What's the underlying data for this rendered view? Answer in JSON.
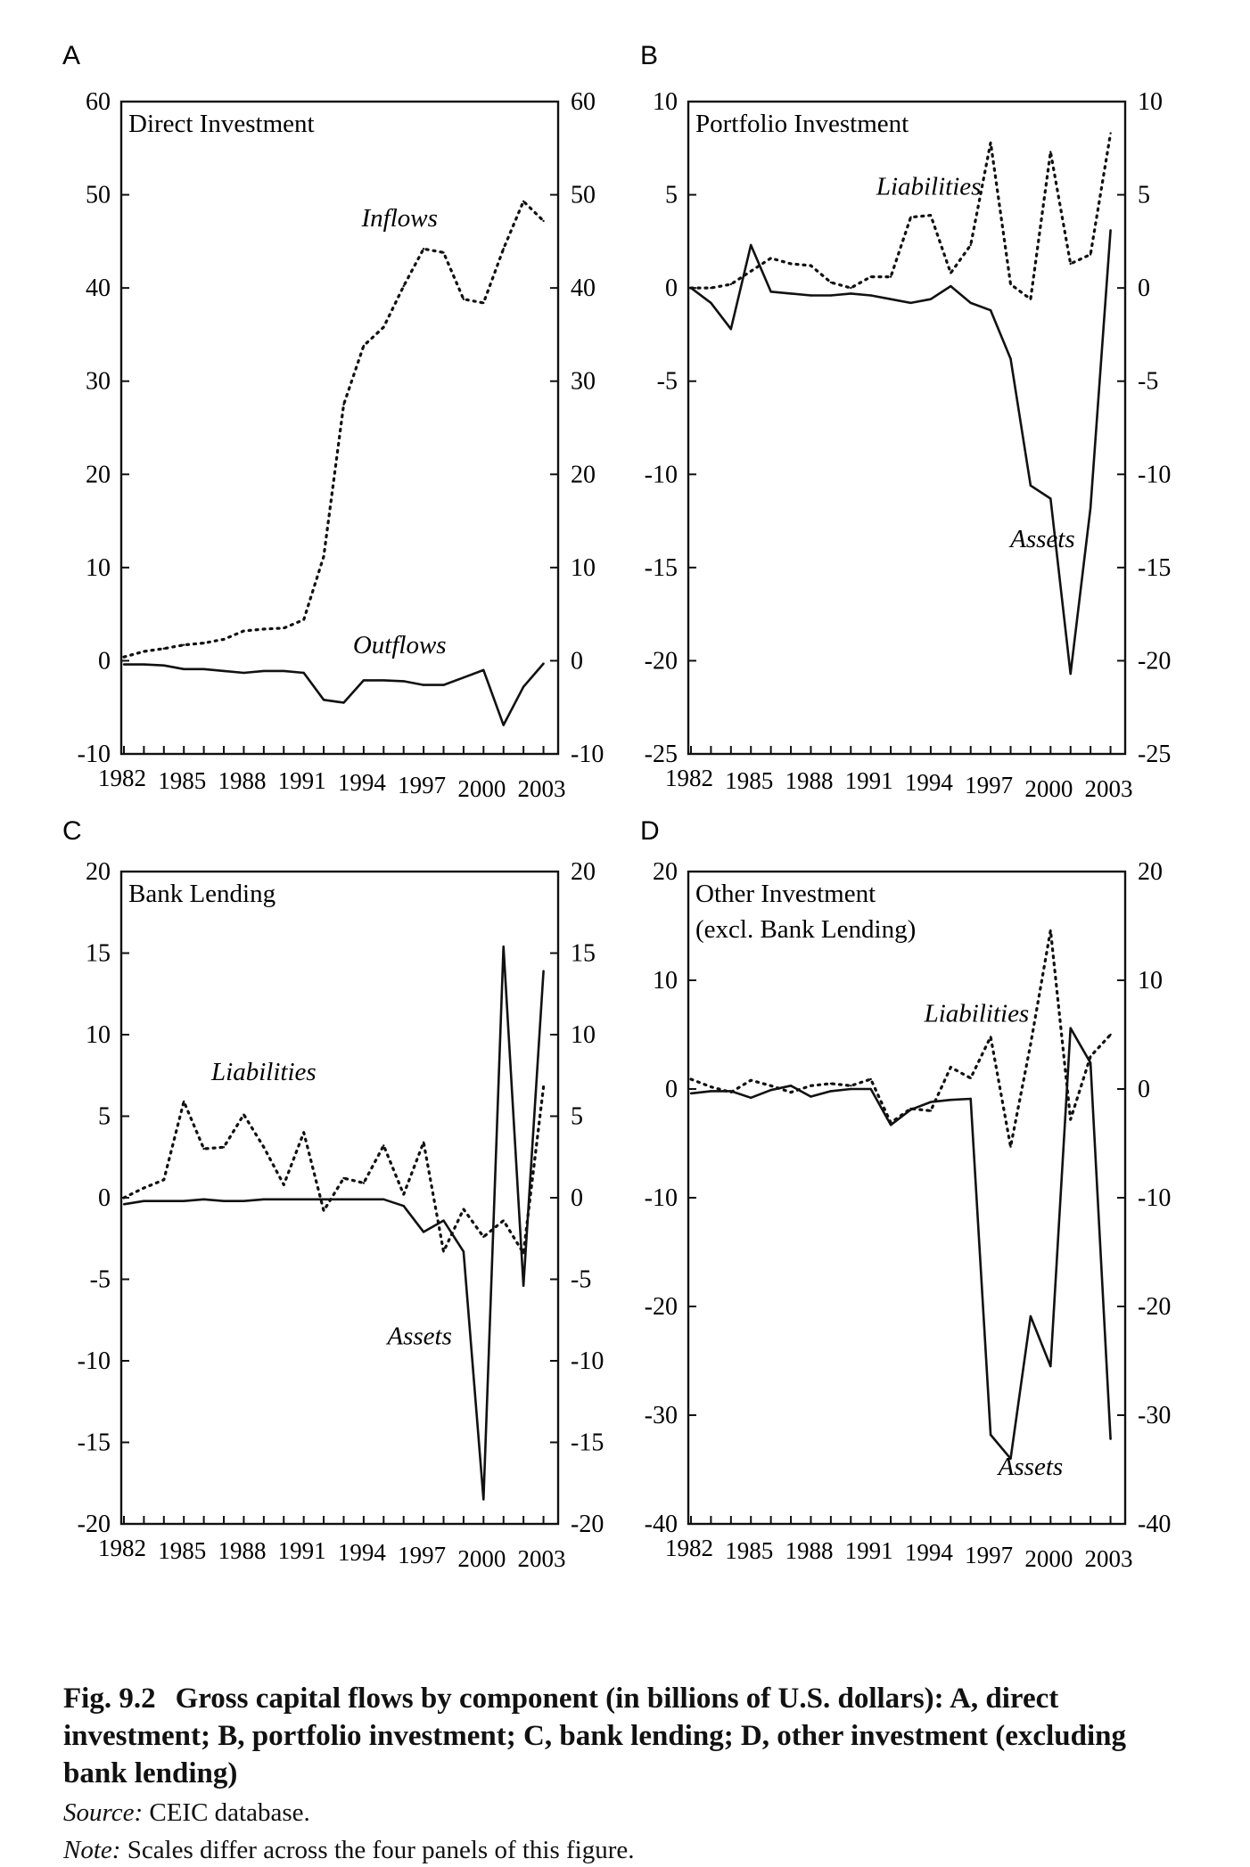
{
  "panels": [
    {
      "letter": "A",
      "title_lines": [
        "Direct Investment"
      ],
      "ylim": [
        -10,
        60
      ],
      "y_ticks": [
        -10,
        0,
        10,
        20,
        30,
        40,
        50,
        60
      ],
      "y_tick_labels": [
        "-10",
        "0",
        "10",
        "20",
        "30",
        "40",
        "50",
        "60"
      ],
      "series_labels": {
        "solid": {
          "text": "Outflows",
          "at": [
            1995.8,
            0.8
          ]
        },
        "dotted": {
          "text": "Inflows",
          "at": [
            1995.8,
            46.6
          ]
        }
      }
    },
    {
      "letter": "B",
      "title_lines": [
        "Portfolio Investment"
      ],
      "ylim": [
        -25,
        10
      ],
      "y_ticks": [
        -25,
        -20,
        -15,
        -10,
        -5,
        0,
        5,
        10
      ],
      "y_tick_labels": [
        "-25",
        "-20",
        "-15",
        "-10",
        "-5",
        "0",
        "5",
        "10"
      ],
      "series_labels": {
        "solid": {
          "text": "Assets",
          "at": [
            1999.6,
            -13.9
          ]
        },
        "dotted": {
          "text": "Liabilities",
          "at": [
            1993.9,
            5.0
          ]
        }
      }
    },
    {
      "letter": "C",
      "title_lines": [
        "Bank Lending"
      ],
      "ylim": [
        -20,
        20
      ],
      "y_ticks": [
        -20,
        -15,
        -10,
        -5,
        0,
        5,
        10,
        15,
        20
      ],
      "y_tick_labels": [
        "-20",
        "-15",
        "-10",
        "-5",
        "0",
        "5",
        "10",
        "15",
        "20"
      ],
      "series_labels": {
        "solid": {
          "text": "Assets",
          "at": [
            1996.8,
            -9.0
          ]
        },
        "dotted": {
          "text": "Liabilities",
          "at": [
            1989.0,
            7.2
          ]
        }
      }
    },
    {
      "letter": "D",
      "title_lines": [
        "Other Investment",
        "(excl. Bank Lending)"
      ],
      "ylim": [
        -40,
        20
      ],
      "y_ticks": [
        -40,
        -30,
        -20,
        -10,
        0,
        10,
        20
      ],
      "y_tick_labels": [
        "-40",
        "-30",
        "-20",
        "-10",
        "0",
        "10",
        "20"
      ],
      "series_labels": {
        "solid": {
          "text": "Assets",
          "at": [
            1999.0,
            -35.5
          ]
        },
        "dotted": {
          "text": "Liabilities",
          "at": [
            1996.3,
            6.2
          ]
        }
      }
    }
  ],
  "x_tick_labels": [
    "1982",
    "1985",
    "1988",
    "1991",
    "1994",
    "1997",
    "2000",
    "2003"
  ],
  "caption": {
    "number": "Fig. 9.2",
    "title": "Gross capital flows by component (in billions of U.S. dollars): A, direct investment; B, portfolio investment; C, bank lending; D, other investment (excluding bank lending)",
    "source_label": "Source:",
    "source_text": "CEIC database.",
    "note_label": "Note:",
    "note_text": "Scales differ across the four panels of this figure."
  },
  "chart_data": [
    {
      "type": "line",
      "title": "Direct Investment",
      "xlabel": "",
      "ylabel": "",
      "x": [
        1982,
        1983,
        1984,
        1985,
        1986,
        1987,
        1988,
        1989,
        1990,
        1991,
        1992,
        1993,
        1994,
        1995,
        1996,
        1997,
        1998,
        1999,
        2000,
        2001,
        2002,
        2003
      ],
      "ylim": [
        -10,
        60
      ],
      "grid": false,
      "series": [
        {
          "name": "Inflows",
          "style": "dotted",
          "values": [
            0.4,
            1.0,
            1.3,
            1.7,
            1.9,
            2.3,
            3.2,
            3.4,
            3.5,
            4.4,
            11.2,
            27.5,
            33.8,
            35.8,
            40.2,
            44.2,
            43.8,
            38.8,
            38.4,
            44.2,
            49.3,
            47.2
          ]
        },
        {
          "name": "Outflows",
          "style": "solid",
          "values": [
            -0.4,
            -0.4,
            -0.5,
            -0.9,
            -0.9,
            -1.1,
            -1.3,
            -1.1,
            -1.1,
            -1.3,
            -4.2,
            -4.5,
            -2.1,
            -2.1,
            -2.2,
            -2.6,
            -2.6,
            -1.8,
            -1.0,
            -6.9,
            -2.8,
            -0.3
          ]
        }
      ]
    },
    {
      "type": "line",
      "title": "Portfolio Investment",
      "xlabel": "",
      "ylabel": "",
      "x": [
        1982,
        1983,
        1984,
        1985,
        1986,
        1987,
        1988,
        1989,
        1990,
        1991,
        1992,
        1993,
        1994,
        1995,
        1996,
        1997,
        1998,
        1999,
        2000,
        2001,
        2002,
        2003
      ],
      "ylim": [
        -25,
        10
      ],
      "grid": false,
      "series": [
        {
          "name": "Liabilities",
          "style": "dotted",
          "values": [
            0.0,
            0.0,
            0.2,
            0.9,
            1.6,
            1.3,
            1.2,
            0.3,
            0.0,
            0.6,
            0.6,
            3.8,
            3.9,
            0.8,
            2.3,
            7.8,
            0.2,
            -0.6,
            7.3,
            1.3,
            1.8,
            8.3
          ]
        },
        {
          "name": "Assets",
          "style": "solid",
          "values": [
            0.0,
            -0.8,
            -2.2,
            2.3,
            -0.2,
            -0.3,
            -0.4,
            -0.4,
            -0.3,
            -0.4,
            -0.6,
            -0.8,
            -0.6,
            0.1,
            -0.8,
            -1.2,
            -3.8,
            -10.6,
            -11.3,
            -20.7,
            -11.8,
            3.1
          ]
        }
      ]
    },
    {
      "type": "line",
      "title": "Bank Lending",
      "xlabel": "",
      "ylabel": "",
      "x": [
        1982,
        1983,
        1984,
        1985,
        1986,
        1987,
        1988,
        1989,
        1990,
        1991,
        1992,
        1993,
        1994,
        1995,
        1996,
        1997,
        1998,
        1999,
        2000,
        2001,
        2002,
        2003
      ],
      "ylim": [
        -20,
        20
      ],
      "grid": false,
      "series": [
        {
          "name": "Liabilities",
          "style": "dotted",
          "values": [
            0.0,
            0.6,
            1.1,
            5.9,
            3.0,
            3.1,
            5.1,
            3.1,
            0.8,
            4.0,
            -0.8,
            1.2,
            0.9,
            3.2,
            0.2,
            3.4,
            -3.3,
            -0.7,
            -2.4,
            -1.4,
            -3.4,
            6.8
          ]
        },
        {
          "name": "Assets",
          "style": "solid",
          "values": [
            -0.4,
            -0.2,
            -0.2,
            -0.2,
            -0.1,
            -0.2,
            -0.2,
            -0.1,
            -0.1,
            -0.1,
            -0.1,
            -0.1,
            -0.1,
            -0.1,
            -0.5,
            -2.1,
            -1.4,
            -3.3,
            -18.5,
            15.4,
            -5.4,
            13.9
          ]
        }
      ]
    },
    {
      "type": "line",
      "title": "Other Investment (excl. Bank Lending)",
      "xlabel": "",
      "ylabel": "",
      "x": [
        1982,
        1983,
        1984,
        1985,
        1986,
        1987,
        1988,
        1989,
        1990,
        1991,
        1992,
        1993,
        1994,
        1995,
        1996,
        1997,
        1998,
        1999,
        2000,
        2001,
        2002,
        2003
      ],
      "ylim": [
        -40,
        20
      ],
      "grid": false,
      "series": [
        {
          "name": "Liabilities",
          "style": "dotted",
          "values": [
            0.9,
            0.2,
            -0.3,
            0.8,
            0.3,
            -0.3,
            0.3,
            0.5,
            0.3,
            0.9,
            -3.1,
            -1.8,
            -2.0,
            2.0,
            1.0,
            4.8,
            -5.3,
            4.1,
            14.6,
            -2.8,
            3.0,
            5.0
          ]
        },
        {
          "name": "Assets",
          "style": "solid",
          "values": [
            -0.4,
            -0.2,
            -0.2,
            -0.8,
            -0.1,
            0.3,
            -0.7,
            -0.2,
            0.0,
            0.0,
            -3.3,
            -1.9,
            -1.2,
            -1.0,
            -0.9,
            -31.8,
            -34.0,
            -20.9,
            -25.5,
            5.6,
            2.4,
            -32.2
          ]
        }
      ]
    }
  ]
}
